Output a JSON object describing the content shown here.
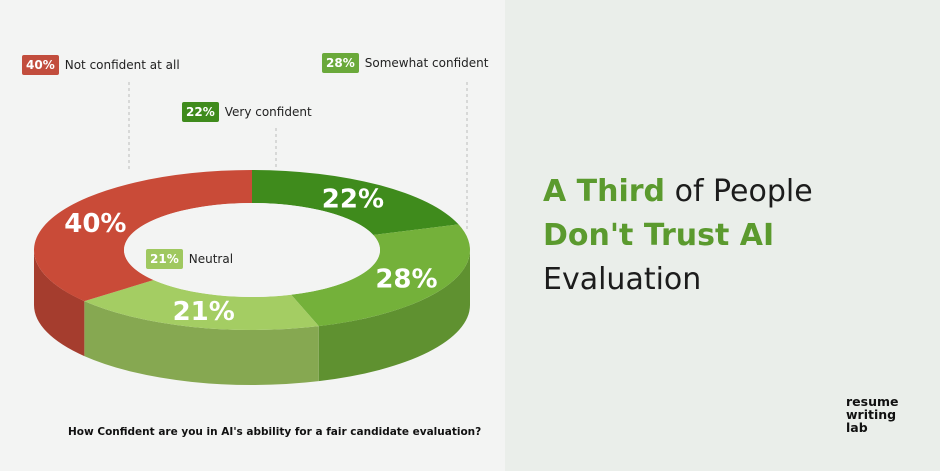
{
  "chart_data": {
    "type": "pie",
    "title": "How Confident are you in AI's abbility for a fair candidate evaluation?",
    "categories": [
      "Not confident at all",
      "Very confident",
      "Somewhat confident",
      "Neutral"
    ],
    "values": [
      40,
      22,
      28,
      21
    ],
    "value_labels": [
      "40%",
      "22%",
      "28%",
      "21%"
    ],
    "colors": [
      "#c94b38",
      "#3f8b1c",
      "#74b13a",
      "#a4cd63"
    ]
  },
  "callouts": {
    "not_confident": {
      "value": "40%",
      "label": "Not confident at all",
      "color": "#c24d3d"
    },
    "very_confident": {
      "value": "22%",
      "label": "Very confident",
      "color": "#3f8b1c"
    },
    "somewhat_confident": {
      "value": "28%",
      "label": "Somewhat confident",
      "color": "#6aa93a"
    },
    "neutral": {
      "value": "21%",
      "label": "Neutral",
      "color": "#9fc85f"
    }
  },
  "question": "How Confident are you in AI's abbility for a fair candidate evaluation?",
  "headline": {
    "line1_highlight": "A Third",
    "line1_rest": " of People",
    "line2_highlight": "Don't Trust AI",
    "line3": "Evaluation"
  },
  "logo": {
    "line1": "resume",
    "line2": "writing",
    "line3": "lab"
  },
  "colors": {
    "accent_green": "#5b9a2e",
    "text_dark": "#1c1c1c"
  }
}
